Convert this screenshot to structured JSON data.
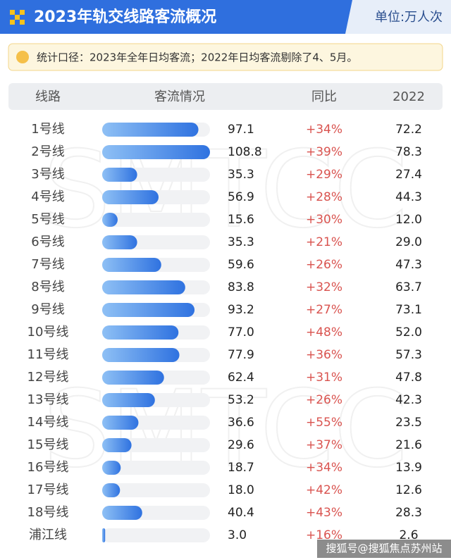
{
  "header": {
    "title": "2023年轨交线路客流概况",
    "unit": "单位:万人次"
  },
  "note": "统计口径：2023年全年日均客流；2022年日均客流剔除了4、5月。",
  "table": {
    "columns": [
      "线路",
      "客流情况",
      "同比",
      "2022"
    ],
    "rows": [
      {
        "line": "1号线",
        "value": 97.1,
        "yoy": "+34%",
        "prev": "72.2"
      },
      {
        "line": "2号线",
        "value": 108.8,
        "yoy": "+39%",
        "prev": "78.3"
      },
      {
        "line": "3号线",
        "value": 35.3,
        "yoy": "+29%",
        "prev": "27.4"
      },
      {
        "line": "4号线",
        "value": 56.9,
        "yoy": "+28%",
        "prev": "44.3"
      },
      {
        "line": "5号线",
        "value": 15.6,
        "yoy": "+30%",
        "prev": "12.0"
      },
      {
        "line": "6号线",
        "value": 35.3,
        "yoy": "+21%",
        "prev": "29.0"
      },
      {
        "line": "7号线",
        "value": 59.6,
        "yoy": "+26%",
        "prev": "47.3"
      },
      {
        "line": "8号线",
        "value": 83.8,
        "yoy": "+32%",
        "prev": "63.7"
      },
      {
        "line": "9号线",
        "value": 93.2,
        "yoy": "+27%",
        "prev": "73.1"
      },
      {
        "line": "10号线",
        "value": 77,
        "value_label": "77.0",
        "yoy": "+48%",
        "prev": "52.0"
      },
      {
        "line": "11号线",
        "value": 77.9,
        "yoy": "+36%",
        "prev": "57.3"
      },
      {
        "line": "12号线",
        "value": 62.4,
        "yoy": "+31%",
        "prev": "47.8"
      },
      {
        "line": "13号线",
        "value": 53.2,
        "yoy": "+26%",
        "prev": "42.3"
      },
      {
        "line": "14号线",
        "value": 36.6,
        "yoy": "+55%",
        "prev": "23.5"
      },
      {
        "line": "15号线",
        "value": 29.6,
        "yoy": "+37%",
        "prev": "21.6"
      },
      {
        "line": "16号线",
        "value": 18.7,
        "yoy": "+34%",
        "prev": "13.9"
      },
      {
        "line": "17号线",
        "value": 18,
        "value_label": "18.0",
        "yoy": "+42%",
        "prev": "12.6"
      },
      {
        "line": "18号线",
        "value": 40.4,
        "yoy": "+43%",
        "prev": "28.3"
      },
      {
        "line": "浦江线",
        "value": 3,
        "value_label": "3.0",
        "yoy": "+16%",
        "prev": "2.6"
      }
    ]
  },
  "watermark": "SMTCC",
  "footer": "搜狐号@搜狐焦点苏州站"
}
